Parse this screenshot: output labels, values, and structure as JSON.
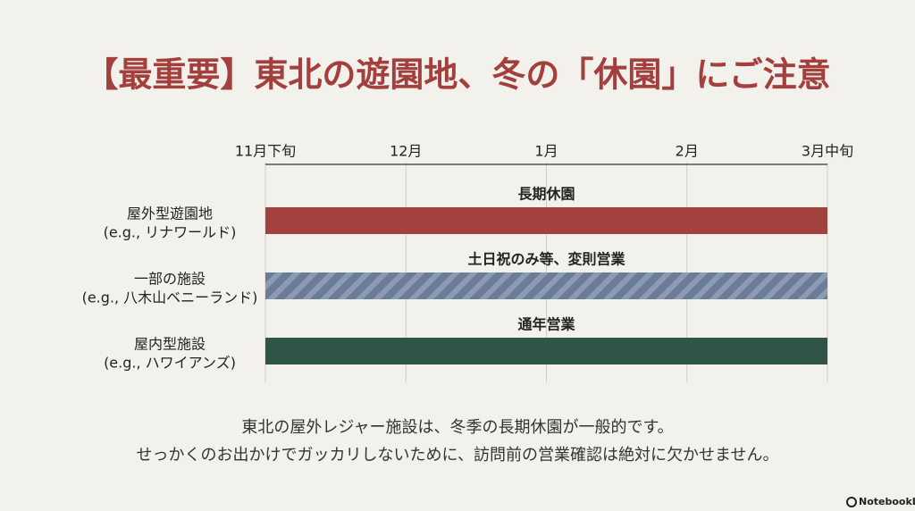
{
  "title": "【最重要】東北の遊園地、冬の「休園」にご注意",
  "timeline": {
    "ticks": [
      "11月下旬",
      "12月",
      "1月",
      "2月",
      "3月中旬"
    ]
  },
  "rows": [
    {
      "label": [
        "屋外型遊園地",
        "(e.g., リナワールド)"
      ],
      "bar_label": "長期休園"
    },
    {
      "label": [
        "一部の施設",
        "(e.g., 八木山ベニーランド)"
      ],
      "bar_label": "土日祝のみ等、変則営業"
    },
    {
      "label": [
        "屋内型施設",
        "(e.g., ハワイアンズ)"
      ],
      "bar_label": "通年営業"
    }
  ],
  "caption": [
    "東北の屋外レジャー施設は、冬季の長期休園が一般的です。",
    "せっかくのお出かけでガッカリしないために、訪問前の営業確認は絶対に欠かせません。"
  ],
  "brand": "NotebookLM"
}
